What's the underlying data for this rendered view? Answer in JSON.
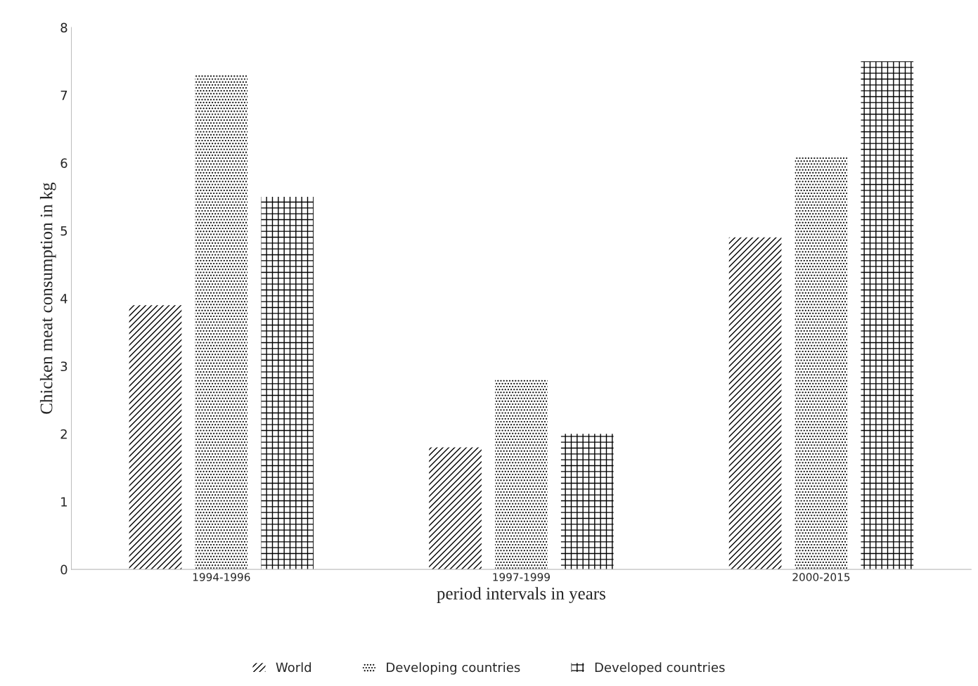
{
  "chart_data": {
    "type": "bar",
    "xlabel": "period intervals in years",
    "ylabel": "Chicken meat consumption in kg",
    "categories": [
      "1994-1996",
      "1997-1999",
      "2000-2015"
    ],
    "series": [
      {
        "name": "World",
        "color": "#000000",
        "values": [
          3.9,
          1.8,
          4.9
        ]
      },
      {
        "name": "Developing countries",
        "color": "#000000",
        "values": [
          7.3,
          2.8,
          6.1
        ]
      },
      {
        "name": "Developed countries",
        "color": "#000000",
        "values": [
          5.5,
          2.0,
          7.5
        ]
      }
    ],
    "ylim": [
      0,
      8
    ],
    "yticks": [
      0,
      1,
      2,
      3,
      4,
      5,
      6,
      7,
      8
    ],
    "grid": false,
    "legend": "bottom"
  }
}
